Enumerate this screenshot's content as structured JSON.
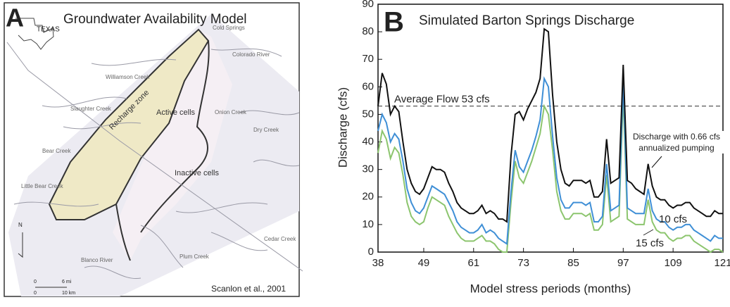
{
  "panel_a": {
    "label": "A",
    "title": "Groundwater Availability Model",
    "state": "TEXAS",
    "north": "N",
    "credit": "Scanlon et al., 2001",
    "places": [
      "Cold Springs",
      "Colorado River",
      "Williamson Creek",
      "Slaughter Creek",
      "Bear Creek",
      "Little Bear Creek",
      "Onion Creek",
      "Dry Creek",
      "Blanco River",
      "Plum Creek",
      "Cedar Creek"
    ],
    "zones": [
      "Recharge zone",
      "Active cells",
      "Inactive cells"
    ],
    "scale": [
      "0",
      "6 mi",
      "0",
      "10 km"
    ]
  },
  "chart_data": {
    "type": "line",
    "panel_label": "B",
    "title": "Simulated Barton Springs Discharge",
    "x_label": "Model stress periods (months)",
    "y_label": "Discharge (cfs)",
    "x": [
      38,
      39,
      40,
      41,
      42,
      43,
      44,
      45,
      46,
      47,
      48,
      49,
      50,
      51,
      52,
      53,
      54,
      55,
      56,
      57,
      58,
      59,
      60,
      61,
      62,
      63,
      64,
      65,
      66,
      67,
      68,
      69,
      70,
      71,
      72,
      73,
      74,
      75,
      76,
      77,
      78,
      79,
      80,
      81,
      82,
      83,
      84,
      85,
      86,
      87,
      88,
      89,
      90,
      91,
      92,
      93,
      94,
      95,
      96,
      97,
      98,
      99,
      100,
      101,
      102,
      103,
      104,
      105,
      106,
      107,
      108,
      109,
      110,
      111,
      112,
      113,
      114,
      115,
      116,
      117,
      118,
      119,
      120,
      121
    ],
    "series": [
      {
        "name": "Discharge with 0.66 cfs annualized pumping",
        "color": "#111111",
        "values": [
          53,
          65,
          61,
          50,
          53,
          51,
          40,
          30,
          25,
          22,
          21,
          23,
          27,
          31,
          30,
          30,
          29,
          25,
          22,
          18,
          16,
          15,
          14,
          14,
          15,
          17,
          14,
          15,
          14,
          12,
          12,
          11,
          35,
          50,
          51,
          48,
          52,
          55,
          58,
          63,
          81,
          80,
          57,
          40,
          30,
          25,
          24,
          26,
          26,
          26,
          25,
          26,
          20,
          20,
          22,
          41,
          25,
          26,
          27,
          68,
          26,
          25,
          23,
          22,
          21,
          32,
          24,
          20,
          19,
          19,
          17,
          16,
          17,
          17,
          18,
          18,
          16,
          15,
          14,
          13,
          13,
          15,
          14,
          14
        ]
      },
      {
        "name": "10 cfs",
        "color": "#3f8fd6",
        "values": [
          44,
          50,
          47,
          40,
          43,
          41,
          33,
          23,
          18,
          15,
          14,
          16,
          20,
          24,
          23,
          22,
          21,
          18,
          15,
          11,
          9,
          8,
          7,
          7,
          8,
          10,
          7,
          8,
          7,
          5,
          4,
          3,
          22,
          37,
          31,
          29,
          33,
          37,
          42,
          48,
          63,
          60,
          42,
          27,
          19,
          16,
          16,
          18,
          18,
          18,
          17,
          18,
          11,
          11,
          13,
          32,
          15,
          16,
          17,
          62,
          16,
          15,
          14,
          14,
          14,
          23,
          15,
          12,
          11,
          11,
          9,
          8,
          9,
          9,
          10,
          10,
          8,
          7,
          6,
          5,
          4,
          6,
          5,
          5
        ]
      },
      {
        "name": "15 cfs",
        "color": "#8cc56e",
        "values": [
          36,
          44,
          41,
          34,
          38,
          36,
          28,
          18,
          13,
          11,
          10,
          11,
          16,
          20,
          19,
          18,
          17,
          13,
          10,
          7,
          5,
          4,
          4,
          4,
          5,
          6,
          4,
          4,
          3,
          1,
          0,
          0,
          18,
          33,
          27,
          25,
          29,
          33,
          38,
          43,
          53,
          50,
          37,
          22,
          15,
          12,
          12,
          14,
          14,
          14,
          13,
          14,
          8,
          8,
          10,
          28,
          11,
          12,
          13,
          57,
          12,
          11,
          10,
          10,
          10,
          19,
          11,
          8,
          7,
          7,
          5,
          4,
          5,
          5,
          6,
          6,
          4,
          3,
          2,
          1,
          0,
          1,
          1,
          0
        ]
      }
    ],
    "reference_line": {
      "value": 53,
      "label": "Average Flow 53 cfs"
    },
    "xlim": [
      38,
      121
    ],
    "xticks": [
      38,
      49,
      61,
      73,
      85,
      97,
      109,
      121
    ],
    "ylim": [
      0,
      90
    ],
    "yticks": [
      0,
      10,
      20,
      30,
      40,
      50,
      60,
      70,
      80,
      90
    ]
  }
}
